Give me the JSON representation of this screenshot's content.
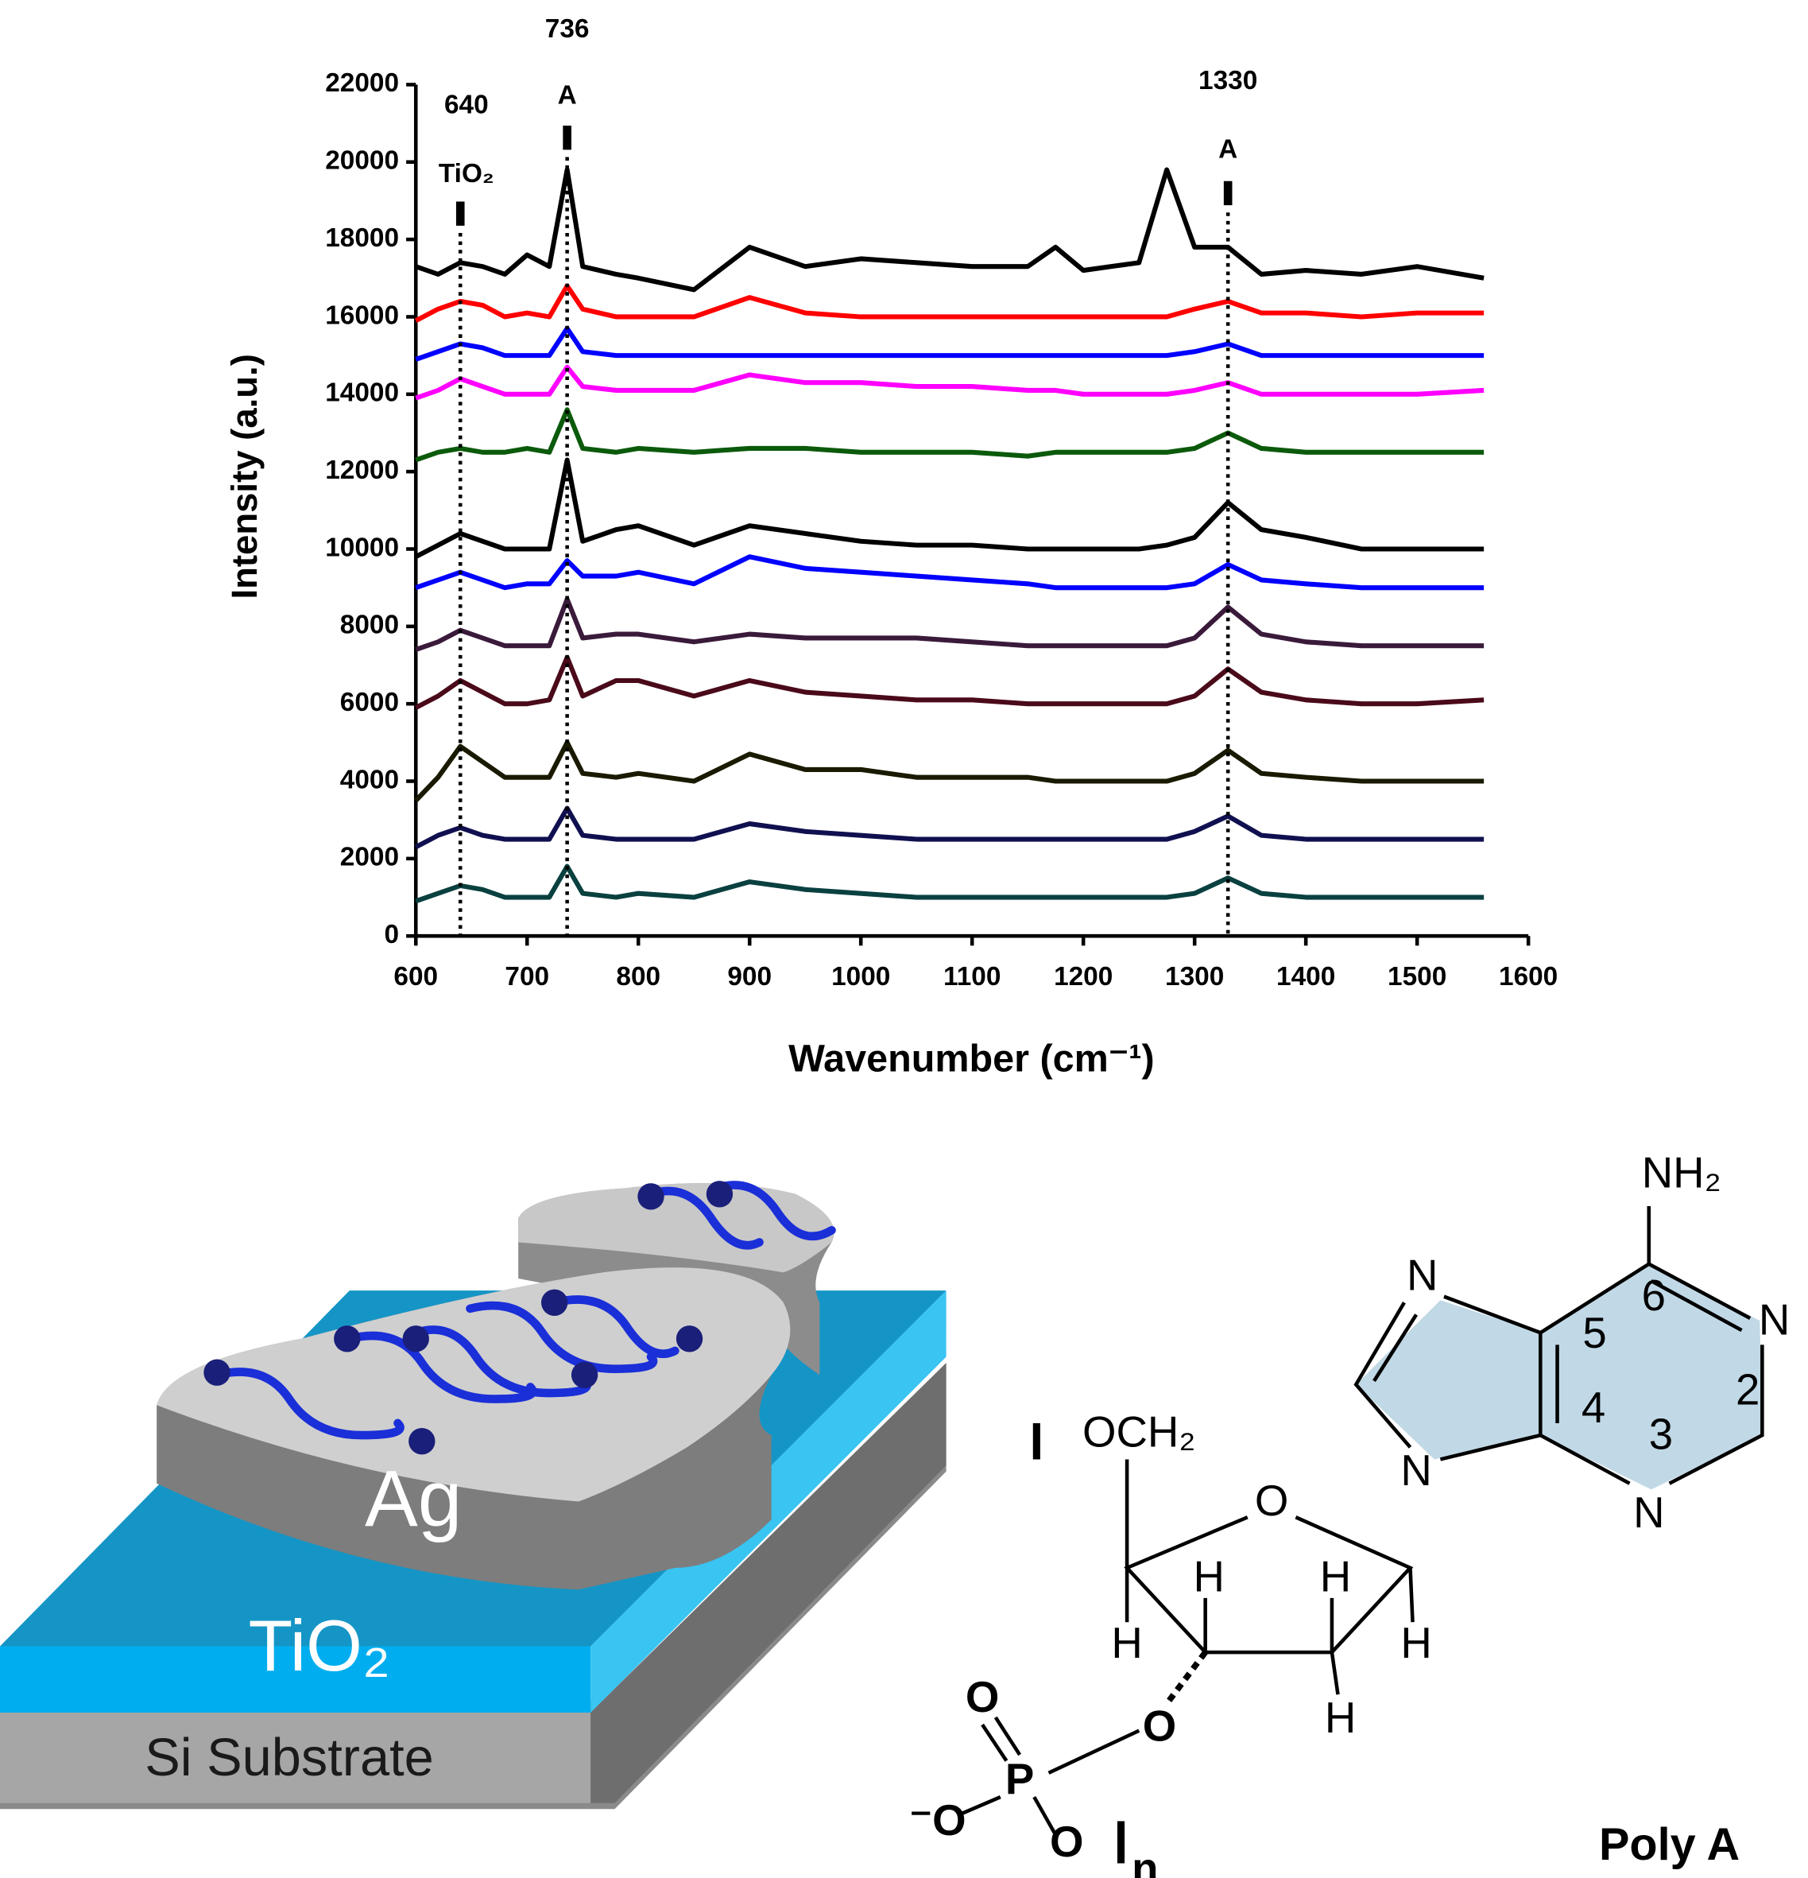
{
  "chart_data": {
    "type": "line",
    "xlabel": "Wavenumber (cm⁻¹)",
    "ylabel": "Intensity (a.u.)",
    "x": [
      600,
      620,
      640,
      660,
      680,
      700,
      720,
      736,
      750,
      780,
      800,
      850,
      900,
      950,
      1000,
      1050,
      1100,
      1150,
      1175,
      1200,
      1250,
      1275,
      1300,
      1330,
      1360,
      1400,
      1450,
      1500,
      1560
    ],
    "series": [
      {
        "color": "#000000",
        "values": [
          17300,
          17100,
          17400,
          17300,
          17100,
          17600,
          17300,
          19800,
          17300,
          17100,
          17000,
          16700,
          17800,
          17300,
          17500,
          17400,
          17300,
          17300,
          17800,
          17200,
          17400,
          19800,
          17800,
          17800,
          17100,
          17200,
          17100,
          17300,
          17000
        ]
      },
      {
        "color": "#ff0000",
        "values": [
          15900,
          16200,
          16400,
          16300,
          16000,
          16100,
          16000,
          16800,
          16200,
          16000,
          16000,
          16000,
          16500,
          16100,
          16000,
          16000,
          16000,
          16000,
          16000,
          16000,
          16000,
          16000,
          16200,
          16400,
          16100,
          16100,
          16000,
          16100,
          16100
        ]
      },
      {
        "color": "#0000ff",
        "values": [
          14900,
          15100,
          15300,
          15200,
          15000,
          15000,
          15000,
          15700,
          15100,
          15000,
          15000,
          15000,
          15000,
          15000,
          15000,
          15000,
          15000,
          15000,
          15000,
          15000,
          15000,
          15000,
          15100,
          15300,
          15000,
          15000,
          15000,
          15000,
          15000
        ]
      },
      {
        "color": "#ff00ff",
        "values": [
          13900,
          14100,
          14400,
          14200,
          14000,
          14000,
          14000,
          14700,
          14200,
          14100,
          14100,
          14100,
          14500,
          14300,
          14300,
          14200,
          14200,
          14100,
          14100,
          14000,
          14000,
          14000,
          14100,
          14300,
          14000,
          14000,
          14000,
          14000,
          14100
        ]
      },
      {
        "color": "#0b5a0b",
        "values": [
          12300,
          12500,
          12600,
          12500,
          12500,
          12600,
          12500,
          13600,
          12600,
          12500,
          12600,
          12500,
          12600,
          12600,
          12500,
          12500,
          12500,
          12400,
          12500,
          12500,
          12500,
          12500,
          12600,
          13000,
          12600,
          12500,
          12500,
          12500,
          12500
        ]
      },
      {
        "color": "#000000",
        "values": [
          9800,
          10100,
          10400,
          10200,
          10000,
          10000,
          10000,
          12300,
          10200,
          10500,
          10600,
          10100,
          10600,
          10400,
          10200,
          10100,
          10100,
          10000,
          10000,
          10000,
          10000,
          10100,
          10300,
          11200,
          10500,
          10300,
          10000,
          10000,
          10000
        ]
      },
      {
        "color": "#0000ff",
        "values": [
          9000,
          9200,
          9400,
          9200,
          9000,
          9100,
          9100,
          9700,
          9300,
          9300,
          9400,
          9100,
          9800,
          9500,
          9400,
          9300,
          9200,
          9100,
          9000,
          9000,
          9000,
          9000,
          9100,
          9600,
          9200,
          9100,
          9000,
          9000,
          9000
        ]
      },
      {
        "color": "#3a1a3a",
        "values": [
          7400,
          7600,
          7900,
          7700,
          7500,
          7500,
          7500,
          8700,
          7700,
          7800,
          7800,
          7600,
          7800,
          7700,
          7700,
          7700,
          7600,
          7500,
          7500,
          7500,
          7500,
          7500,
          7700,
          8500,
          7800,
          7600,
          7500,
          7500,
          7500
        ]
      },
      {
        "color": "#4a0a1a",
        "values": [
          5900,
          6200,
          6600,
          6300,
          6000,
          6000,
          6100,
          7200,
          6200,
          6600,
          6600,
          6200,
          6600,
          6300,
          6200,
          6100,
          6100,
          6000,
          6000,
          6000,
          6000,
          6000,
          6200,
          6900,
          6300,
          6100,
          6000,
          6000,
          6100
        ]
      },
      {
        "color": "#1a1a00",
        "values": [
          3500,
          4100,
          4900,
          4500,
          4100,
          4100,
          4100,
          5000,
          4200,
          4100,
          4200,
          4000,
          4700,
          4300,
          4300,
          4100,
          4100,
          4100,
          4000,
          4000,
          4000,
          4000,
          4200,
          4800,
          4200,
          4100,
          4000,
          4000,
          4000
        ]
      },
      {
        "color": "#101050",
        "values": [
          2300,
          2600,
          2800,
          2600,
          2500,
          2500,
          2500,
          3300,
          2600,
          2500,
          2500,
          2500,
          2900,
          2700,
          2600,
          2500,
          2500,
          2500,
          2500,
          2500,
          2500,
          2500,
          2700,
          3100,
          2600,
          2500,
          2500,
          2500,
          2500
        ]
      },
      {
        "color": "#0a4040",
        "values": [
          900,
          1100,
          1300,
          1200,
          1000,
          1000,
          1000,
          1800,
          1100,
          1000,
          1100,
          1000,
          1400,
          1200,
          1100,
          1000,
          1000,
          1000,
          1000,
          1000,
          1000,
          1000,
          1100,
          1500,
          1100,
          1000,
          1000,
          1000,
          1000
        ]
      }
    ],
    "xlim": [
      600,
      1600
    ],
    "xticks": [
      600,
      700,
      800,
      900,
      1000,
      1100,
      1200,
      1300,
      1400,
      1500,
      1600
    ],
    "ylim": [
      0,
      22000
    ],
    "yticks": [
      0,
      2000,
      4000,
      6000,
      8000,
      10000,
      12000,
      14000,
      16000,
      18000,
      20000,
      22000
    ],
    "annotations": [
      {
        "x": 640,
        "label": "640",
        "note": "TiO₂"
      },
      {
        "x": 736,
        "label": "736",
        "note": "A"
      },
      {
        "x": 1330,
        "label": "1330",
        "note": "A"
      }
    ]
  },
  "diagram": {
    "layers": [
      "Ag",
      "TiO₂",
      "Si Substrate"
    ],
    "molecule": [
      "NH₂",
      "N",
      "6",
      "N",
      "5",
      "2",
      "4",
      "3",
      "N",
      "N",
      "OCH₂",
      "O",
      "H",
      "H",
      "H",
      "H",
      "H",
      "O",
      "O",
      "P",
      "⁻O",
      "O",
      "n"
    ],
    "caption": "Poly A"
  }
}
